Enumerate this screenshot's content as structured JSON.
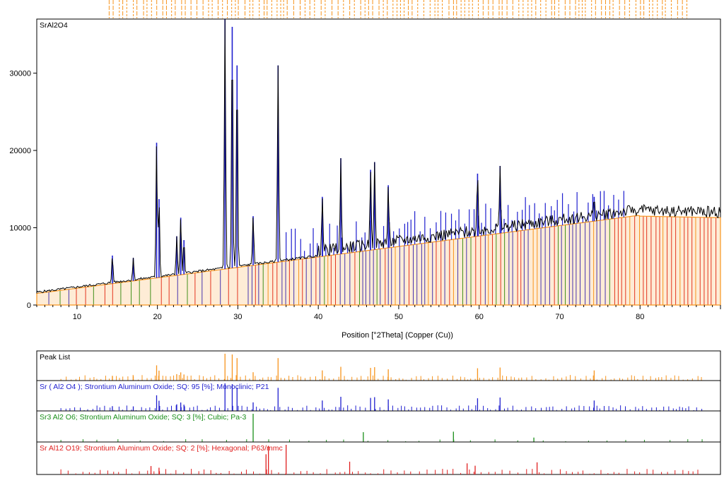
{
  "colors": {
    "observed": "#000000",
    "peak_list": "#f7941d",
    "monoclinic": "#1f1fcf",
    "cubic": "#1a8f1a",
    "hexagonal": "#e02020",
    "background": "#7a7a7a"
  },
  "chart_data": {
    "type": "line",
    "title": "SrAl2O4",
    "xlabel": "Position [°2Theta] (Copper (Cu))",
    "xlim": [
      5,
      90
    ],
    "ylim": [
      0,
      37000
    ],
    "xticks": [
      "10",
      "20",
      "30",
      "40",
      "50",
      "60",
      "70",
      "80"
    ],
    "yticks": [
      "0",
      "10000",
      "20000",
      "30000"
    ],
    "grid": false,
    "observed_peaks": [
      {
        "x": 14.4,
        "y": 6400
      },
      {
        "x": 17.0,
        "y": 6100
      },
      {
        "x": 19.9,
        "y": 21000
      },
      {
        "x": 20.2,
        "y": 13700
      },
      {
        "x": 22.4,
        "y": 8900
      },
      {
        "x": 22.9,
        "y": 11300
      },
      {
        "x": 23.3,
        "y": 8400
      },
      {
        "x": 28.4,
        "y": 37000
      },
      {
        "x": 29.3,
        "y": 36000
      },
      {
        "x": 29.9,
        "y": 31000
      },
      {
        "x": 31.9,
        "y": 11500
      },
      {
        "x": 35.0,
        "y": 31000
      },
      {
        "x": 40.5,
        "y": 14000
      },
      {
        "x": 42.8,
        "y": 19000
      },
      {
        "x": 46.5,
        "y": 17500
      },
      {
        "x": 47.0,
        "y": 18500
      },
      {
        "x": 48.7,
        "y": 15500
      },
      {
        "x": 59.8,
        "y": 17000
      },
      {
        "x": 62.6,
        "y": 18000
      },
      {
        "x": 74.3,
        "y": 14000
      }
    ],
    "panels": [
      {
        "label": "Peak List"
      },
      {
        "label": "Sr ( Al2 O4 ); Strontium Aluminum Oxide; SQ: 95 [%]; Monoclinic; P21"
      },
      {
        "label": "Sr3 Al2 O6; Strontium Aluminum Oxide; SQ: 3 [%]; Cubic; Pa-3"
      },
      {
        "label": "Sr Al12 O19; Strontium Aluminum Oxide; SQ: 2 [%]; Hexagonal; P63/mmc"
      }
    ]
  }
}
